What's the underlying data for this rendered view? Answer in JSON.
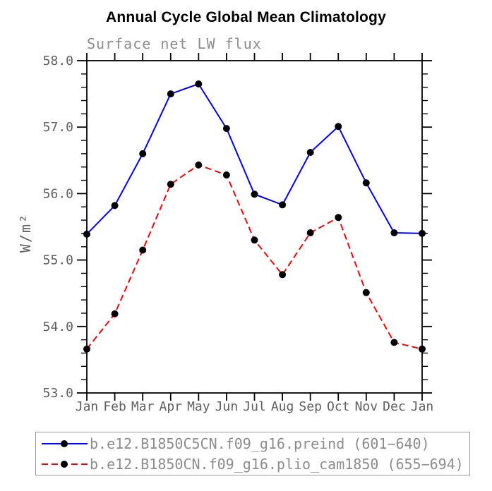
{
  "chart_data": {
    "type": "line",
    "title": "Annual Cycle Global Mean Climatology",
    "subtitle": "Surface net LW flux",
    "ylabel": "W/m²",
    "xlabel": "",
    "categories": [
      "Jan",
      "Feb",
      "Mar",
      "Apr",
      "May",
      "Jun",
      "Jul",
      "Aug",
      "Sep",
      "Oct",
      "Nov",
      "Dec",
      "Jan"
    ],
    "series": [
      {
        "name": "b.e12.B1850C5CN.f09_g16.preind (601−640)",
        "color": "#0000ff",
        "style": "solid",
        "marker": "circle",
        "marker_color": "#000000",
        "values": [
          55.39,
          55.82,
          56.6,
          57.5,
          57.65,
          56.98,
          55.99,
          55.83,
          56.62,
          57.01,
          56.16,
          55.41,
          55.4
        ]
      },
      {
        "name": "b.e12.B1850CN.f09_g16.plio_cam1850 (655−694)",
        "color": "#ff0000",
        "style": "dashed",
        "marker": "circle",
        "marker_color": "#000000",
        "values": [
          53.66,
          54.19,
          55.15,
          56.14,
          56.43,
          56.28,
          55.3,
          54.78,
          55.41,
          55.64,
          54.51,
          53.76,
          53.66
        ]
      }
    ],
    "ylim": [
      53.0,
      58.0
    ],
    "y_major_ticks": [
      53.0,
      54.0,
      55.0,
      56.0,
      57.0,
      58.0
    ],
    "y_minor_step": 0.2,
    "grid": false,
    "legend_position": "bottom",
    "axis_color": "#000000",
    "tick_label_color": "#5f5f5f",
    "text_color": "#8c8c8c"
  }
}
